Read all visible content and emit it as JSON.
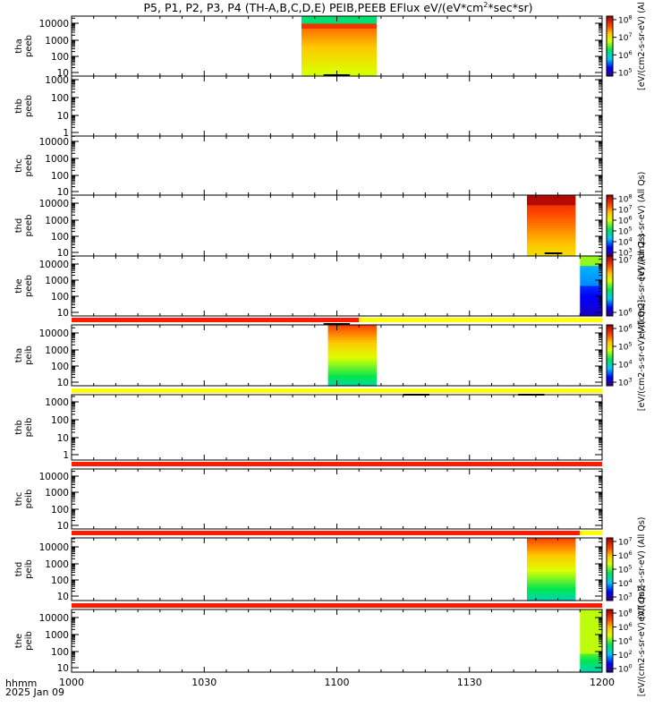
{
  "title": "P5, P1, P2, P3, P4 (TH-A,B,C,D,E) PEIB,PEEB EFlux eV/(eV*cm",
  "title_sup": "2",
  "title_tail": "*sec*sr)",
  "footer": {
    "hhmm": "hhmm",
    "date": "2025 Jan 09"
  },
  "colors": {
    "red": "#ff1a00",
    "yellow": "#ffff00",
    "black": "#000000"
  },
  "chart_data": {
    "type": "heatmap",
    "x_ticks": [
      "1000",
      "1030",
      "1100",
      "1130",
      "1200"
    ],
    "x_range_minutes": [
      0,
      120
    ],
    "panels": [
      {
        "name": "thb-peeb-placeholder-0",
        "probe": "tha",
        "species": "peeb",
        "ylabel": "tha\npeeb",
        "yticks": [
          "10",
          "100",
          "1000",
          "10000"
        ],
        "ylog_range": [
          0.8,
          4.6
        ],
        "spectrogram": {
          "start": 52,
          "end": 69,
          "palette": "electron_a"
        },
        "colorbar": {
          "ticks": [
            "10^5",
            "10^6",
            "10^7",
            "10^8"
          ],
          "title": "eV/(cm2-s-sr-eV) (All"
        }
      }
    ]
  },
  "panels_text": {
    "tha_peeb": {
      "l1": "tha",
      "l2": "peeb",
      "ticks": [
        "10",
        "100",
        "1000",
        "10000"
      ]
    },
    "thb_peeb": {
      "l1": "thb",
      "l2": "peeb",
      "ticks": [
        "1",
        "10",
        "100",
        "1000"
      ]
    },
    "thc_peeb": {
      "l1": "thc",
      "l2": "peeb",
      "ticks": [
        "10",
        "100",
        "1000",
        "10000"
      ]
    },
    "thd_peeb": {
      "l1": "thd",
      "l2": "peeb",
      "ticks": [
        "10",
        "100",
        "1000",
        "10000"
      ]
    },
    "the_peeb": {
      "l1": "the",
      "l2": "peeb",
      "ticks": [
        "10",
        "100",
        "1000",
        "10000"
      ]
    },
    "tha_peib": {
      "l1": "tha",
      "l2": "peib",
      "ticks": [
        "10",
        "100",
        "1000",
        "10000"
      ]
    },
    "thb_peib": {
      "l1": "thb",
      "l2": "peib",
      "ticks": [
        "1",
        "10",
        "100",
        "1000"
      ]
    },
    "thc_peib": {
      "l1": "thc",
      "l2": "peib",
      "ticks": [
        "10",
        "100",
        "1000",
        "10000"
      ]
    },
    "thd_peib": {
      "l1": "thd",
      "l2": "peib",
      "ticks": [
        "10",
        "100",
        "1000",
        "10000"
      ]
    },
    "the_peib": {
      "l1": "the",
      "l2": "peib",
      "ticks": [
        "10",
        "100",
        "1000",
        "10000"
      ]
    }
  },
  "colorbars": {
    "cb1": {
      "ticks": [
        "10^5",
        "10^6",
        "10^7",
        "10^8"
      ],
      "label": "[eV/(cm2-s-sr-eV) (Al"
    },
    "cb2": {
      "ticks": [
        "10^3",
        "10^4",
        "10^5",
        "10^6",
        "10^7",
        "10^8"
      ],
      "label": "[eV/(cm2-s-sr-eV) (All Qs)"
    },
    "cb3": {
      "ticks": [
        "10^6",
        "10^7"
      ],
      "label": "eV/(cm2-s-sr-eV) (All Qs)"
    },
    "cb4": {
      "ticks": [
        "10^3",
        "10^4",
        "10^5",
        "10^6"
      ],
      "label": "[eV/(cm2-s-sr-eV) (All Qs)]"
    },
    "cb5": {
      "ticks": [
        "10^3",
        "10^4",
        "10^5",
        "10^6",
        "10^7"
      ],
      "label": "eV/(cm2-s-sr-eV) (All Qs)"
    },
    "cb6": {
      "ticks": [
        "10^0",
        "10^2",
        "10^4",
        "10^6",
        "10^8"
      ],
      "label": "[eV/(cm2-s-sr-eV) (All Qs)]"
    }
  }
}
